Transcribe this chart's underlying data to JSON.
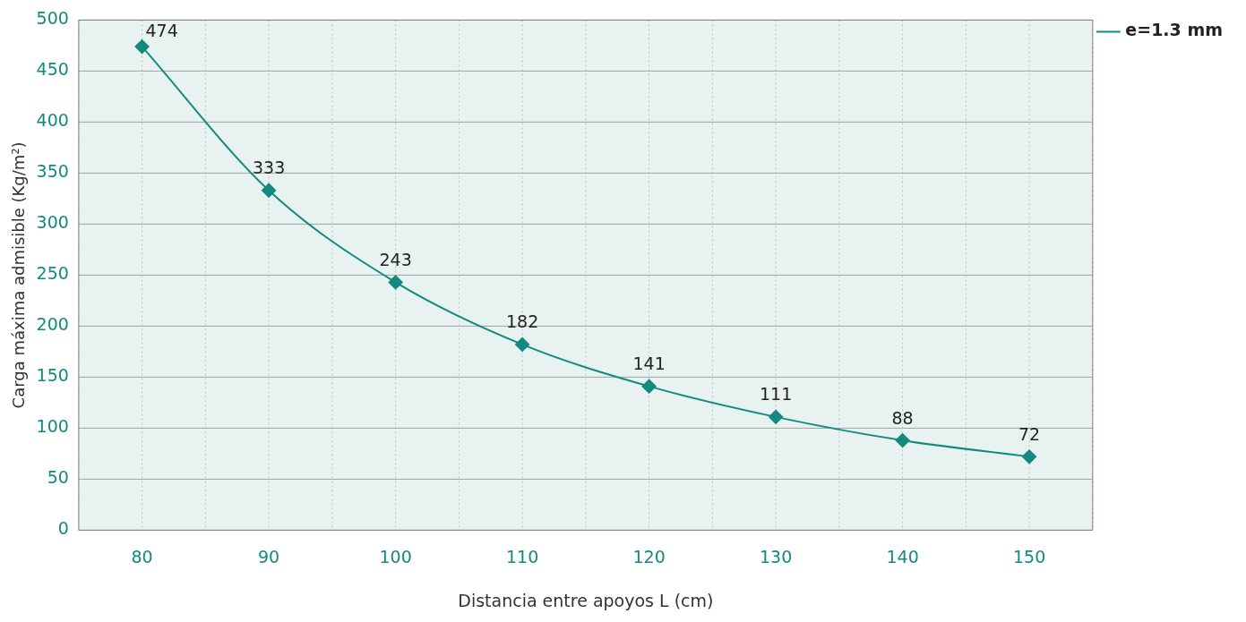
{
  "chart_data": {
    "type": "line",
    "xlabel": "Distancia entre apoyos L (cm)",
    "ylabel": "Carga máxima admisible (Kg/m²)",
    "categories": [
      "80",
      "90",
      "100",
      "110",
      "120",
      "130",
      "140",
      "150"
    ],
    "series": [
      {
        "name": "e=1.3 mm",
        "color": "#138a7f",
        "values": [
          474,
          333,
          243,
          182,
          141,
          111,
          88,
          72
        ]
      }
    ],
    "ylim": [
      0,
      500
    ],
    "yticks": [
      0,
      50,
      100,
      150,
      200,
      250,
      300,
      350,
      400,
      450,
      500
    ],
    "grid": true,
    "legend": "top right",
    "marker": "diamond",
    "line_style": "solid",
    "data_labels": true
  }
}
